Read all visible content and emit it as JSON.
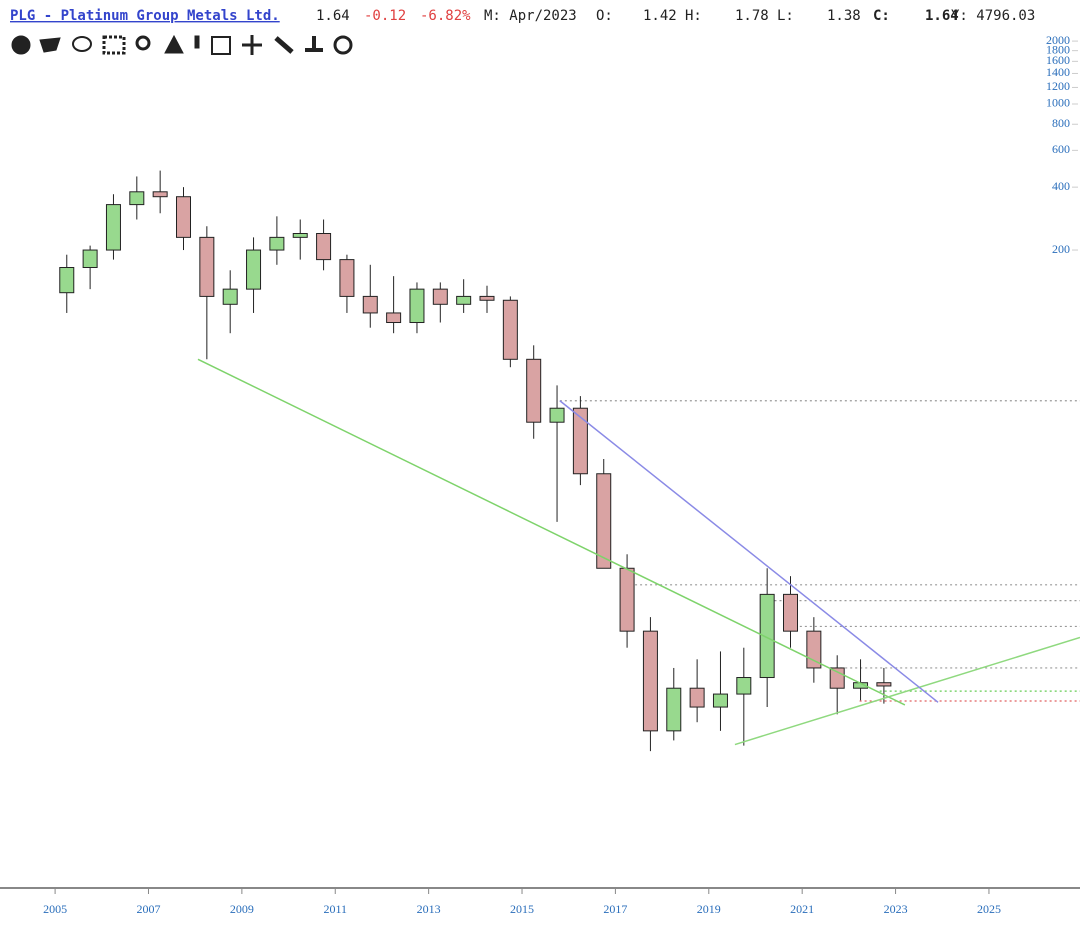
{
  "header": {
    "title": "PLG - Platinum Group Metals Ltd.",
    "last": "1.64",
    "change": "-0.12",
    "change_pct": "-6.82%",
    "period": "M: Apr/2023",
    "open_label": "O:",
    "open": "1.42",
    "high_label": "H:",
    "high": "1.78",
    "low_label": "L:",
    "low": "1.38",
    "close_label": "C:",
    "close": "1.64",
    "volume": "Y: 4796.03"
  },
  "chart_data": {
    "type": "candlestick",
    "log_scale": true,
    "xlim": [
      2003.82,
      2026.95
    ],
    "xticks": [
      2005,
      2007,
      2009,
      2011,
      2013,
      2015,
      2017,
      2019,
      2021,
      2023,
      2025
    ],
    "ylim": [
      0.177,
      2260
    ],
    "yticks": [
      2000,
      1800,
      1600,
      1400,
      1200,
      1000,
      800,
      600,
      400,
      200
    ],
    "up_color": "#98d98e",
    "down_color": "#d9a3a3",
    "x": [
      2005.25,
      2005.75,
      2006.25,
      2006.75,
      2007.25,
      2007.75,
      2008.25,
      2008.75,
      2009.25,
      2009.75,
      2010.25,
      2010.75,
      2011.25,
      2011.75,
      2012.25,
      2012.75,
      2013.25,
      2013.75,
      2014.25,
      2014.75,
      2015.25,
      2015.75,
      2016.25,
      2016.75,
      2017.25,
      2017.75,
      2018.25,
      2018.75,
      2019.25,
      2019.75,
      2020.25,
      2020.75,
      2021.25,
      2021.75,
      2022.25,
      2022.75
    ],
    "open": [
      125,
      165,
      200,
      330,
      380,
      360,
      230,
      110,
      130,
      200,
      230,
      240,
      180,
      120,
      100,
      90,
      130,
      110,
      120,
      115,
      60,
      30,
      35,
      17,
      6,
      3,
      1,
      1.6,
      1.3,
      1.5,
      1.8,
      4.5,
      3,
      2,
      1.6,
      1.7
    ],
    "high": [
      190,
      210,
      370,
      450,
      480,
      400,
      260,
      160,
      230,
      290,
      280,
      280,
      190,
      170,
      150,
      140,
      140,
      145,
      135,
      120,
      70,
      45,
      40,
      20,
      7,
      3.5,
      2,
      2.2,
      2.4,
      2.5,
      6,
      5.5,
      3.5,
      2.3,
      2.2,
      2
    ],
    "low": [
      100,
      130,
      180,
      280,
      300,
      200,
      60,
      80,
      100,
      170,
      180,
      160,
      100,
      85,
      80,
      80,
      90,
      100,
      100,
      55,
      25,
      10,
      15,
      6,
      2.5,
      0.8,
      0.9,
      1.1,
      1.0,
      0.85,
      1.3,
      2.5,
      1.7,
      1.2,
      1.4,
      1.35
    ],
    "close": [
      165,
      200,
      330,
      380,
      360,
      230,
      120,
      130,
      200,
      230,
      240,
      180,
      120,
      100,
      90,
      130,
      110,
      120,
      115,
      60,
      30,
      35,
      17,
      6,
      3,
      1,
      1.6,
      1.3,
      1.5,
      1.8,
      4.5,
      3,
      2,
      1.6,
      1.7,
      1.64
    ],
    "trendlines": [
      {
        "color": "#7ed36b",
        "x": [
          2008.06,
          2023.2
        ],
        "y": [
          60,
          1.33
        ]
      },
      {
        "color": "#8fd97f",
        "x": [
          2019.56,
          2026.95
        ],
        "y": [
          0.86,
          2.8
        ]
      },
      {
        "color": "#8a8ae6",
        "x": [
          2015.81,
          2023.91
        ],
        "y": [
          38,
          1.37
        ]
      }
    ],
    "levels": [
      {
        "color": "#999999",
        "from": 2015.81,
        "value": 38
      },
      {
        "color": "#999999",
        "from": 2017.1,
        "value": 5.0
      },
      {
        "color": "#999999",
        "from": 2020.3,
        "value": 4.2
      },
      {
        "color": "#999999",
        "from": 2020.95,
        "value": 3.16
      },
      {
        "color": "#999999",
        "from": 2021.6,
        "value": 2.0
      },
      {
        "color": "#66cc55",
        "from": 2022.66,
        "value": 1.55
      },
      {
        "color": "#e06060",
        "from": 2022.23,
        "value": 1.39
      }
    ]
  }
}
